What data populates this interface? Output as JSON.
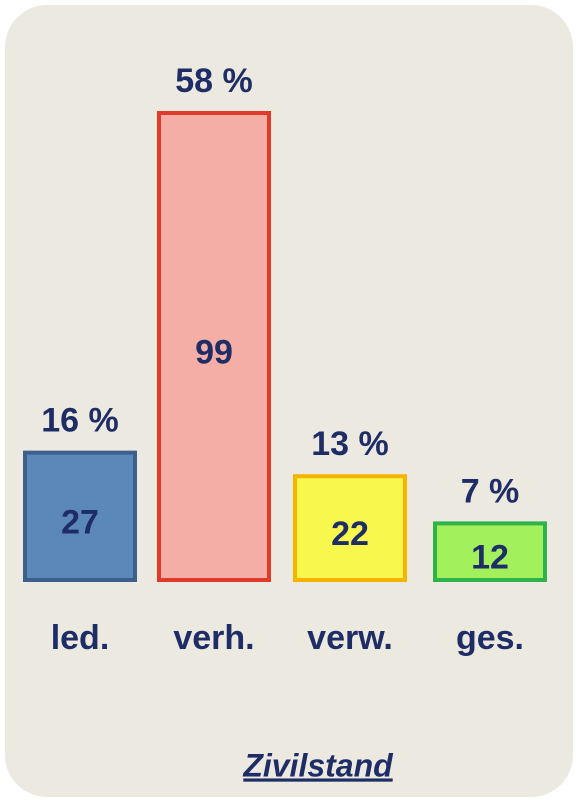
{
  "chart_data": {
    "type": "bar",
    "title": "Zivilstand",
    "categories": [
      "led.",
      "verh.",
      "verw.",
      "ges."
    ],
    "values": [
      27,
      99,
      22,
      12
    ],
    "share_values": [
      16,
      58,
      13,
      7
    ],
    "share_labels": [
      "16 %",
      "58 %",
      "13 %",
      "7 %"
    ],
    "colors": [
      "#5b87b9",
      "#f5aea5",
      "#f7f74d",
      "#a3f05d"
    ],
    "edge_colors": [
      "#3d5f8c",
      "#e03b2a",
      "#f4b400",
      "#2db34a"
    ]
  }
}
